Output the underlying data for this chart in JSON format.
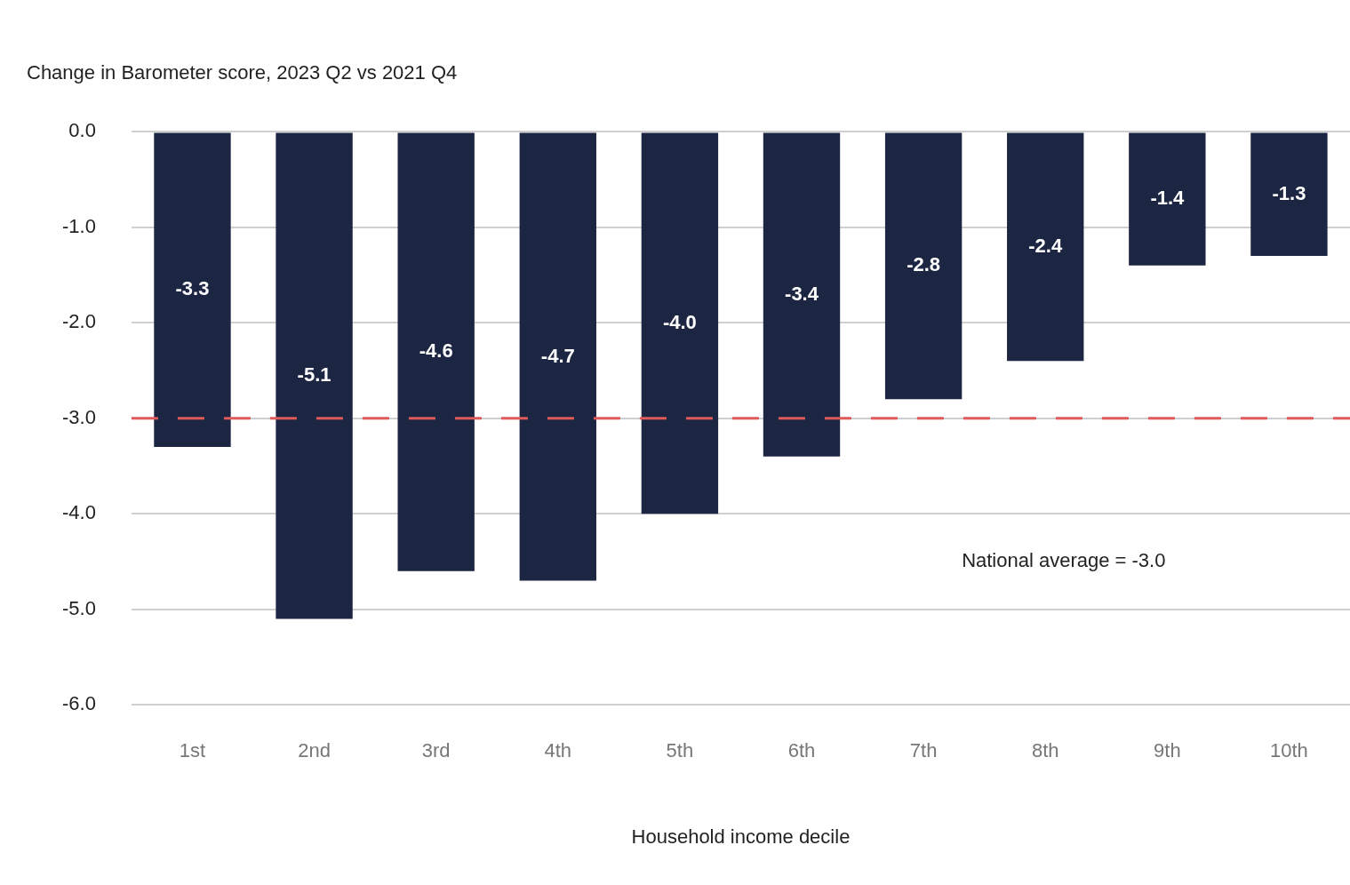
{
  "chart_data": {
    "type": "bar",
    "title": "Change in Barometer score, 2023 Q2 vs 2021 Q4",
    "xlabel": "Household income decile",
    "categories": [
      "1st",
      "2nd",
      "3rd",
      "4th",
      "5th",
      "6th",
      "7th",
      "8th",
      "9th",
      "10th"
    ],
    "values": [
      -3.3,
      -5.1,
      -4.6,
      -4.7,
      -4.0,
      -3.4,
      -2.8,
      -2.4,
      -1.4,
      -1.3
    ],
    "color": "#1c2541",
    "ylim": [
      -6,
      0
    ],
    "yticks": [
      {
        "value": 0,
        "label": "0.0"
      },
      {
        "value": -1,
        "label": "-1.0"
      },
      {
        "value": -2,
        "label": "-2.0"
      },
      {
        "value": -3,
        "label": "-3.0"
      },
      {
        "value": -4,
        "label": "-4.0"
      },
      {
        "value": -5,
        "label": "-5.0"
      },
      {
        "value": -6,
        "label": "-6.0"
      }
    ],
    "grid": "y",
    "legend": false,
    "value_labels": [
      "-3.3",
      "-5.1",
      "-4.6",
      "-4.7",
      "-4.0",
      "-3.4",
      "-2.8",
      "-2.4",
      "-1.4",
      "-1.3"
    ],
    "annotations": [
      "National average = -3.0"
    ],
    "ref_lines": [
      {
        "axis": "y",
        "value": -3.0,
        "color": "#e05a5a",
        "line_style": "dashed"
      }
    ]
  }
}
